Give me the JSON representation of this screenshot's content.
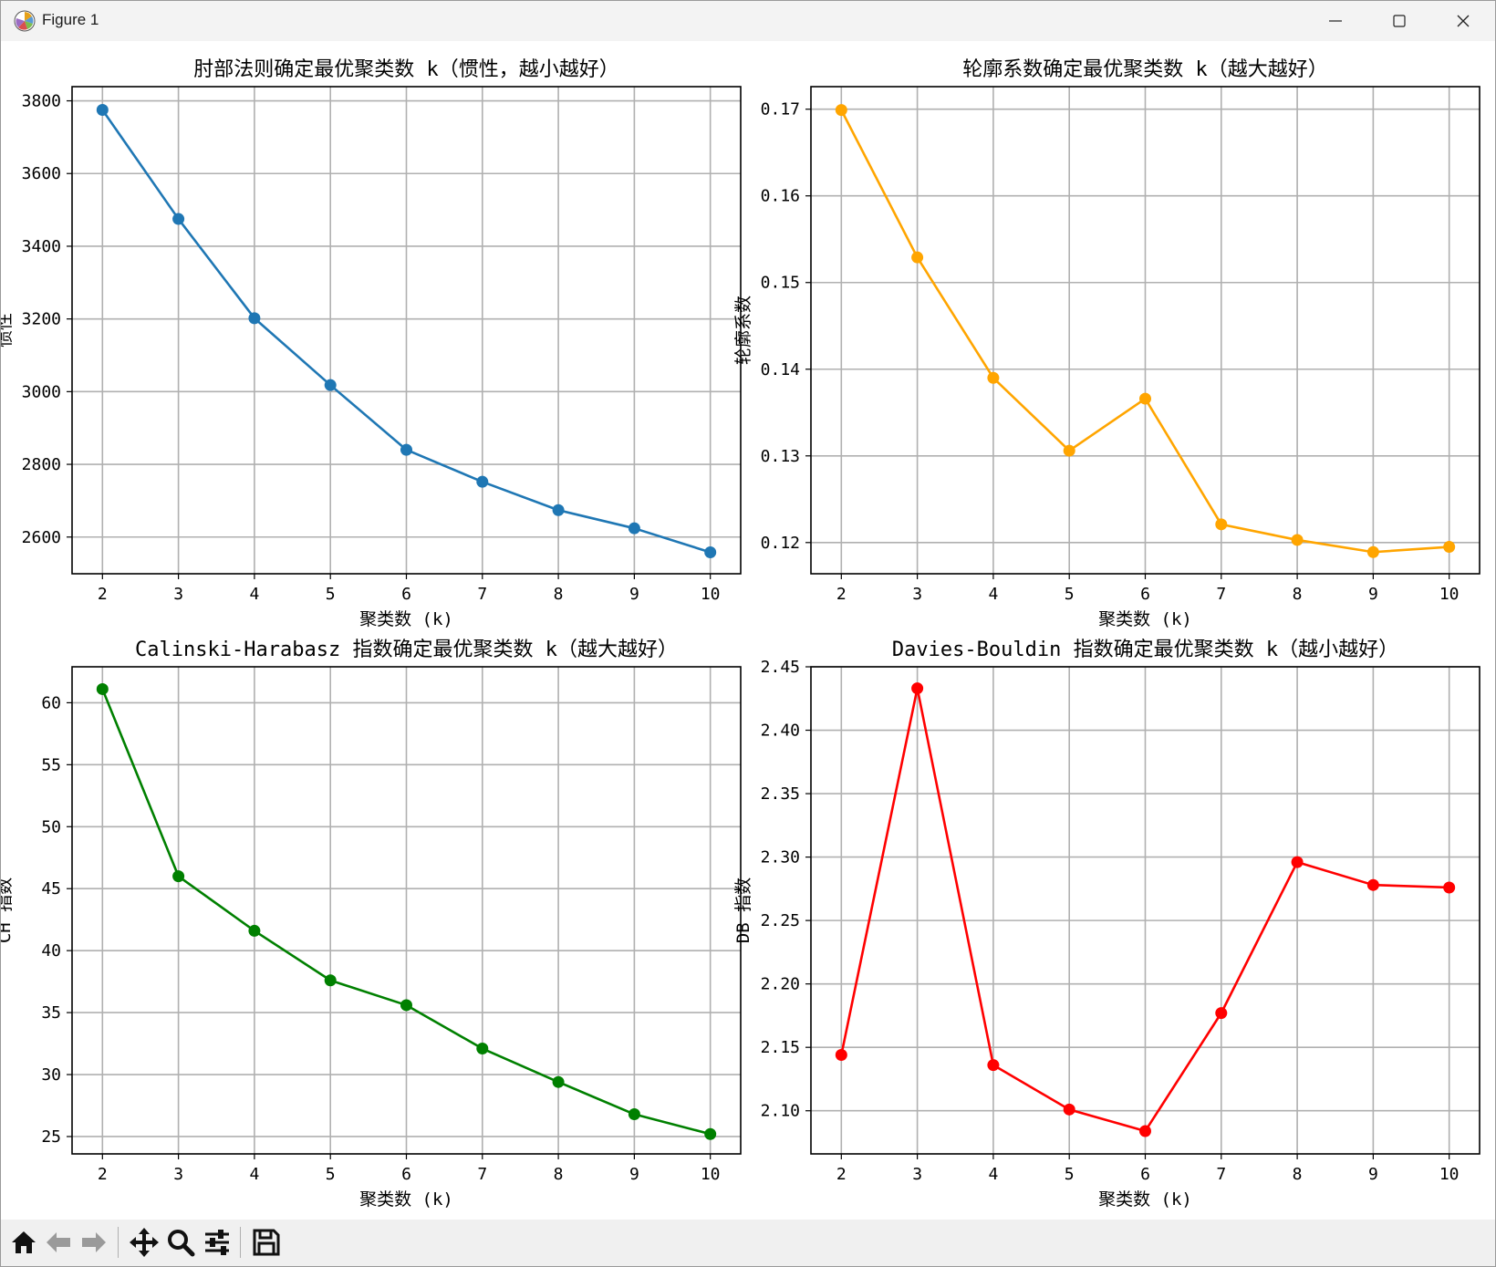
{
  "window": {
    "title": "Figure 1"
  },
  "toolbar": {
    "items": [
      "home-icon",
      "back-icon",
      "forward-icon",
      "pan-icon",
      "zoom-icon",
      "configure-subplots-icon",
      "save-icon"
    ]
  },
  "chart_data": [
    {
      "type": "line",
      "title": "肘部法则确定最优聚类数 k（惯性，越小越好）",
      "xlabel": "聚类数 (k)",
      "ylabel": "惯性",
      "x": [
        2,
        3,
        4,
        5,
        6,
        7,
        8,
        9,
        10
      ],
      "series": [
        {
          "values": [
            3775,
            3475,
            3202,
            3018,
            2840,
            2752,
            2674,
            2624,
            2558
          ],
          "color": "#1f77b4"
        }
      ],
      "xticks": [
        2,
        3,
        4,
        5,
        6,
        7,
        8,
        9,
        10
      ],
      "yticks": [
        2600,
        2800,
        3000,
        3200,
        3400,
        3600,
        3800
      ],
      "ytick_labels": [
        "2600",
        "2800",
        "3000",
        "3200",
        "3400",
        "3600",
        "3800"
      ],
      "xlim": [
        1.6,
        10.4
      ],
      "ylim": [
        2499,
        3839
      ],
      "grid": true
    },
    {
      "type": "line",
      "title": "轮廓系数确定最优聚类数 k（越大越好）",
      "xlabel": "聚类数 (k)",
      "ylabel": "轮廓系数",
      "x": [
        2,
        3,
        4,
        5,
        6,
        7,
        8,
        9,
        10
      ],
      "series": [
        {
          "values": [
            0.1699,
            0.1529,
            0.139,
            0.1306,
            0.1366,
            0.1221,
            0.1203,
            0.1189,
            0.1195
          ],
          "color": "#ffa500"
        }
      ],
      "xticks": [
        2,
        3,
        4,
        5,
        6,
        7,
        8,
        9,
        10
      ],
      "yticks": [
        0.12,
        0.13,
        0.14,
        0.15,
        0.16,
        0.17
      ],
      "ytick_labels": [
        "0.12",
        "0.13",
        "0.14",
        "0.15",
        "0.16",
        "0.17"
      ],
      "xlim": [
        1.6,
        10.4
      ],
      "ylim": [
        0.1164,
        0.1726
      ],
      "grid": true
    },
    {
      "type": "line",
      "title": "Calinski-Harabasz 指数确定最优聚类数 k（越大越好）",
      "xlabel": "聚类数 (k)",
      "ylabel": "CH 指数",
      "x": [
        2,
        3,
        4,
        5,
        6,
        7,
        8,
        9,
        10
      ],
      "series": [
        {
          "values": [
            61.1,
            46.0,
            41.6,
            37.6,
            35.6,
            32.1,
            29.4,
            26.8,
            25.2
          ],
          "color": "#008000"
        }
      ],
      "xticks": [
        2,
        3,
        4,
        5,
        6,
        7,
        8,
        9,
        10
      ],
      "yticks": [
        25,
        30,
        35,
        40,
        45,
        50,
        55,
        60
      ],
      "ytick_labels": [
        "25",
        "30",
        "35",
        "40",
        "45",
        "50",
        "55",
        "60"
      ],
      "xlim": [
        1.6,
        10.4
      ],
      "ylim": [
        23.6,
        62.9
      ],
      "grid": true
    },
    {
      "type": "line",
      "title": "Davies-Bouldin 指数确定最优聚类数 k（越小越好）",
      "xlabel": "聚类数 (k)",
      "ylabel": "DB 指数",
      "x": [
        2,
        3,
        4,
        5,
        6,
        7,
        8,
        9,
        10
      ],
      "series": [
        {
          "values": [
            2.144,
            2.433,
            2.136,
            2.101,
            2.084,
            2.177,
            2.296,
            2.278,
            2.276
          ],
          "color": "#ff0000"
        }
      ],
      "xticks": [
        2,
        3,
        4,
        5,
        6,
        7,
        8,
        9,
        10
      ],
      "yticks": [
        2.1,
        2.15,
        2.2,
        2.25,
        2.3,
        2.35,
        2.4,
        2.45
      ],
      "ytick_labels": [
        "2.10",
        "2.15",
        "2.20",
        "2.25",
        "2.30",
        "2.35",
        "2.40",
        "2.45"
      ],
      "xlim": [
        1.6,
        10.4
      ],
      "ylim": [
        2.066,
        2.45
      ],
      "grid": true
    }
  ]
}
